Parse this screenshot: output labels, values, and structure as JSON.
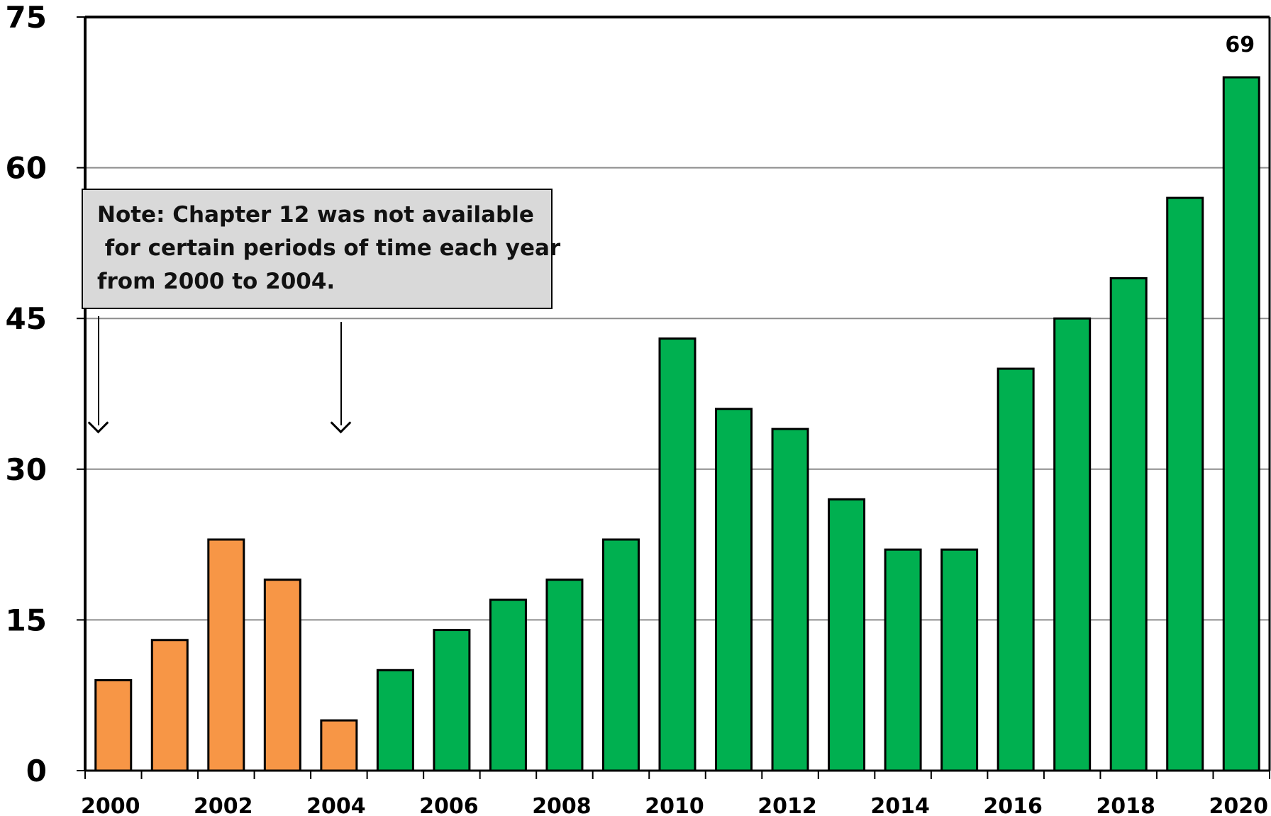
{
  "chart_data": {
    "type": "bar",
    "title": "",
    "xlabel": "",
    "ylabel": "",
    "ylim": [
      0,
      75
    ],
    "yticks": [
      "0",
      "15",
      "30",
      "45",
      "60",
      "75"
    ],
    "categories": [
      "2000",
      "2001",
      "2002",
      "2003",
      "2004",
      "2005",
      "2006",
      "2007",
      "2008",
      "2009",
      "2010",
      "2011",
      "2012",
      "2013",
      "2014",
      "2015",
      "2016",
      "2017",
      "2018",
      "2019",
      "2020"
    ],
    "xtick_labels": [
      "2000",
      "2002",
      "2004",
      "2006",
      "2008",
      "2010",
      "2012",
      "2014",
      "2016",
      "2018",
      "2020"
    ],
    "values": [
      9,
      13,
      23,
      19,
      5,
      10,
      14,
      17,
      19,
      23,
      43,
      36,
      34,
      27,
      22,
      22,
      40,
      45,
      49,
      57,
      69
    ],
    "bar_colors": [
      "#f79646",
      "#f79646",
      "#f79646",
      "#f79646",
      "#f79646",
      "#00b050",
      "#00b050",
      "#00b050",
      "#00b050",
      "#00b050",
      "#00b050",
      "#00b050",
      "#00b050",
      "#00b050",
      "#00b050",
      "#00b050",
      "#00b050",
      "#00b050",
      "#00b050",
      "#00b050",
      "#00b050"
    ],
    "data_labels": {
      "2020": "69"
    },
    "grid": true,
    "annotation": "Note: Chapter 12 was not available\n for certain periods of time each year\nfrom 2000 to 2004."
  }
}
